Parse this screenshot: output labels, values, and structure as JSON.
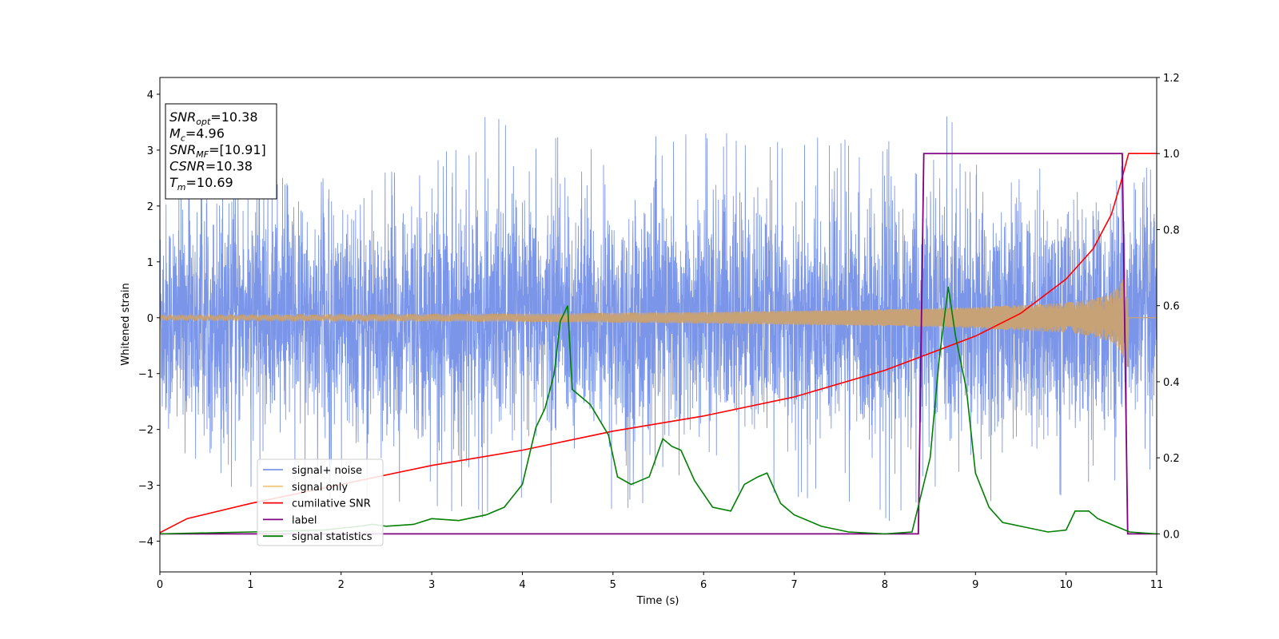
{
  "chart_data": {
    "type": "line",
    "title": "",
    "xlabel": "Time (s)",
    "ylabel": "Whitened strain",
    "xlim": [
      0,
      11
    ],
    "ylim": [
      -4.55,
      4.3
    ],
    "y2lim": [
      -0.1,
      1.2
    ],
    "x_ticks": [
      0,
      1,
      2,
      3,
      4,
      5,
      6,
      7,
      8,
      9,
      10,
      11
    ],
    "x_tick_labels": [
      "0",
      "1",
      "2",
      "3",
      "4",
      "5",
      "6",
      "7",
      "8",
      "9",
      "10",
      "11"
    ],
    "y_ticks": [
      4,
      3,
      2,
      1,
      0,
      -1,
      -2,
      -3,
      -4
    ],
    "y_tick_labels": [
      "4",
      "3",
      "2",
      "1",
      "0",
      "−1",
      "−2",
      "−3",
      "−4"
    ],
    "y2_ticks": [
      1.2,
      1.0,
      0.8,
      0.6,
      0.4,
      0.2,
      0.0
    ],
    "y2_tick_labels": [
      "1.2",
      "1.0",
      "0.8",
      "0.6",
      "0.4",
      "0.2",
      "0.0"
    ],
    "grid": false,
    "legend_position": "lower-left",
    "annotation": [
      {
        "base": "SNR",
        "sub": "opt",
        "value": "=10.38"
      },
      {
        "base": "M",
        "sub": "c",
        "value": "=4.96"
      },
      {
        "base": "SNR",
        "sub": "MF",
        "value": "=[10.91]"
      },
      {
        "base": "CSNR",
        "sub": "",
        "value": "=10.38"
      },
      {
        "base": "T",
        "sub": "m",
        "value": "=10.69"
      }
    ],
    "series": [
      {
        "name": "signal+ noise",
        "axis": "left",
        "color": "#7b96e8",
        "description_note": "",
        "envelope_x": [
          0,
          1,
          2,
          3,
          3.7,
          4,
          4.4,
          5,
          6,
          7,
          8,
          8.6,
          9,
          10,
          10.6,
          11
        ],
        "envelope_top": [
          2.3,
          2.5,
          2.5,
          2.7,
          3.9,
          2.8,
          3.4,
          3.2,
          3.3,
          3.3,
          3.1,
          3.9,
          3.1,
          3.1,
          2.9,
          2.6
        ],
        "envelope_bottom": [
          -2.4,
          -3.2,
          -3.4,
          -3.6,
          -3.7,
          -3.4,
          -3.3,
          -3.5,
          -3.4,
          -3.2,
          -3.7,
          -3.2,
          -3.4,
          -3.2,
          -3.6,
          -2.6
        ]
      },
      {
        "name": "signal only",
        "axis": "left",
        "color": "#f5c77a",
        "x": [
          0,
          2,
          4,
          6,
          8,
          9,
          10,
          10.3,
          10.5,
          10.6,
          10.65,
          10.69,
          10.72,
          11
        ],
        "amplitude": [
          0.04,
          0.05,
          0.07,
          0.1,
          0.15,
          0.19,
          0.27,
          0.33,
          0.45,
          0.6,
          0.8,
          0.95,
          0.0,
          0.0
        ]
      },
      {
        "name": "cumilative SNR",
        "axis": "right",
        "color": "#ff0000",
        "x": [
          0,
          0.3,
          1,
          2,
          3,
          4,
          5,
          6,
          7,
          8,
          9,
          9.5,
          10,
          10.3,
          10.5,
          10.6,
          10.69,
          11
        ],
        "values": [
          0.003,
          0.04,
          0.08,
          0.13,
          0.18,
          0.22,
          0.27,
          0.31,
          0.36,
          0.43,
          0.52,
          0.58,
          0.67,
          0.75,
          0.84,
          0.92,
          1.0,
          1.0
        ]
      },
      {
        "name": "label",
        "axis": "right",
        "color": "#800080",
        "x": [
          0,
          8.37,
          8.43,
          10.62,
          10.68,
          11
        ],
        "values": [
          0.0,
          0.0,
          1.0,
          1.0,
          0.0,
          0.0
        ]
      },
      {
        "name": "signal statistics",
        "axis": "right",
        "color": "#008000",
        "x": [
          0,
          1,
          1.8,
          2.2,
          2.35,
          2.5,
          2.8,
          3.0,
          3.3,
          3.6,
          3.8,
          4.0,
          4.15,
          4.25,
          4.35,
          4.42,
          4.5,
          4.55,
          4.6,
          4.75,
          4.85,
          4.95,
          5.05,
          5.2,
          5.4,
          5.55,
          5.65,
          5.75,
          5.9,
          6.1,
          6.3,
          6.45,
          6.6,
          6.7,
          6.85,
          7.0,
          7.3,
          7.6,
          8.0,
          8.3,
          8.5,
          8.6,
          8.7,
          8.78,
          8.9,
          9.0,
          9.15,
          9.3,
          9.5,
          9.8,
          10.0,
          10.1,
          10.25,
          10.35,
          10.5,
          10.7,
          11
        ],
        "values": [
          0.0,
          0.005,
          0.01,
          0.02,
          0.025,
          0.02,
          0.025,
          0.04,
          0.035,
          0.05,
          0.07,
          0.13,
          0.28,
          0.33,
          0.42,
          0.56,
          0.6,
          0.38,
          0.37,
          0.34,
          0.3,
          0.26,
          0.15,
          0.13,
          0.15,
          0.25,
          0.23,
          0.22,
          0.14,
          0.07,
          0.06,
          0.13,
          0.15,
          0.16,
          0.08,
          0.05,
          0.02,
          0.005,
          0.0,
          0.005,
          0.2,
          0.46,
          0.65,
          0.52,
          0.38,
          0.16,
          0.07,
          0.03,
          0.02,
          0.005,
          0.01,
          0.06,
          0.06,
          0.04,
          0.025,
          0.005,
          0.0
        ]
      }
    ]
  }
}
